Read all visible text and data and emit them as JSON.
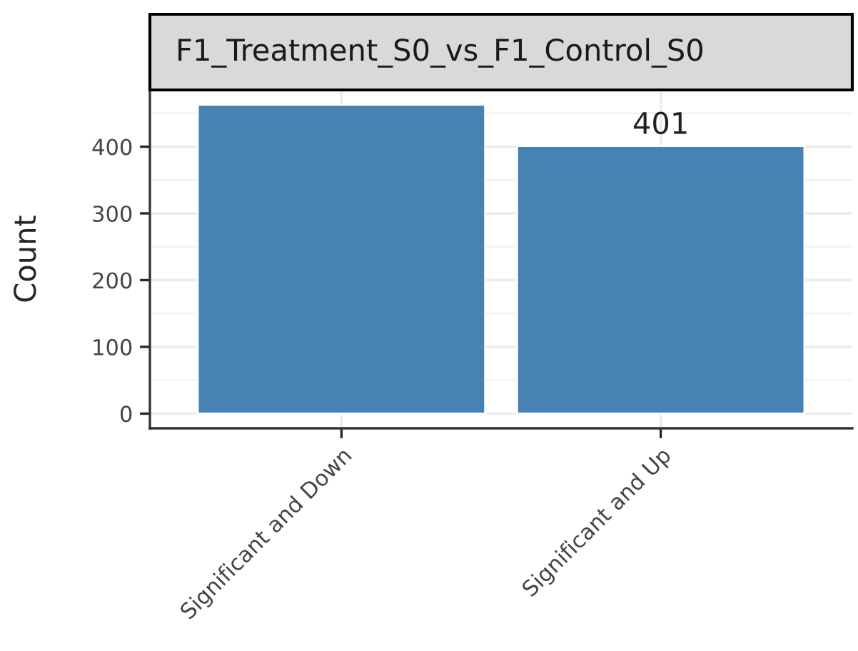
{
  "chart_data": {
    "type": "bar",
    "title": "F1_Treatment_S0_vs_F1_Control_S0",
    "ylabel": "Count",
    "categories": [
      "Significant and Down",
      "Significant and Up"
    ],
    "values": [
      463,
      401
    ],
    "value_labels": [
      null,
      "401"
    ],
    "color": "#4682b4",
    "ylim": [
      -22,
      485
    ],
    "yticks": [
      0,
      100,
      200,
      300,
      400
    ],
    "grid": true
  }
}
